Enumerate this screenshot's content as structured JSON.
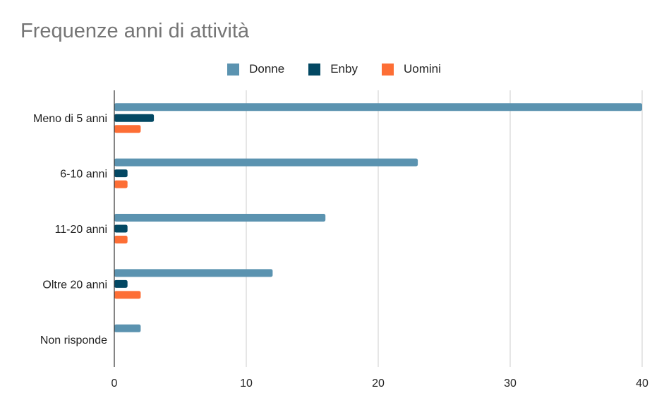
{
  "chart_data": {
    "type": "bar",
    "orientation": "horizontal",
    "title": "Frequenze anni di attività",
    "categories": [
      "Meno di 5 anni",
      "6-10 anni",
      "11-20 anni",
      "Oltre 20 anni",
      "Non risponde"
    ],
    "series": [
      {
        "name": "Donne",
        "color": "#5b93b0",
        "values": [
          40,
          23,
          16,
          12,
          2
        ]
      },
      {
        "name": "Enby",
        "color": "#034863",
        "values": [
          3,
          1,
          1,
          1,
          0
        ]
      },
      {
        "name": "Uomini",
        "color": "#fd6e35",
        "values": [
          2,
          1,
          1,
          2,
          0
        ]
      }
    ],
    "xlim": [
      0,
      40
    ],
    "xticks": [
      "0",
      "10",
      "20",
      "30",
      "40"
    ],
    "grid": "vertical",
    "legend_position": "top"
  }
}
